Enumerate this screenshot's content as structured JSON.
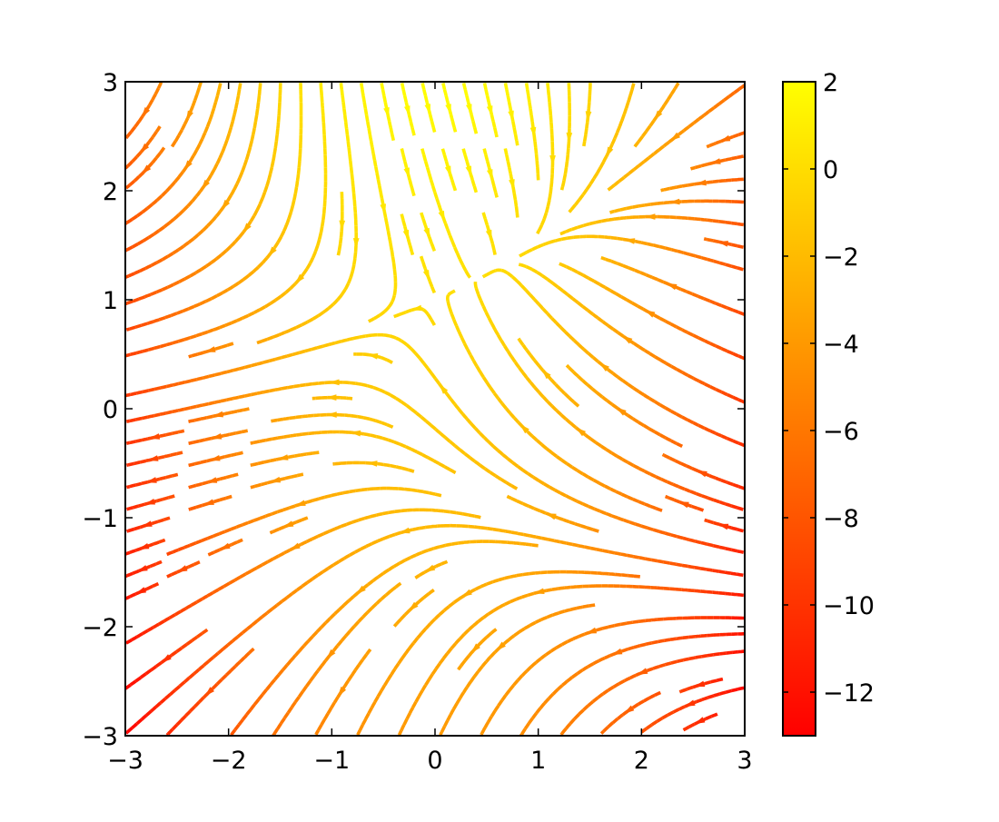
{
  "chart_data": {
    "type": "streamplot",
    "vector_field": {
      "U": "-1 - x^2 + y",
      "V": "1 + x - y^2"
    },
    "color_by": "U",
    "colormap": "autumn",
    "colormap_colors": {
      "low": "#ff0000",
      "high": "#ffff00"
    },
    "xlim": [
      -3,
      3
    ],
    "ylim": [
      -3,
      3
    ],
    "xticks": [
      "−3",
      "−2",
      "−1",
      "0",
      "1",
      "2",
      "3"
    ],
    "yticks": [
      "−3",
      "−2",
      "−1",
      "0",
      "1",
      "2",
      "3"
    ],
    "xtick_values": [
      -3,
      -2,
      -1,
      0,
      1,
      2,
      3
    ],
    "ytick_values": [
      -3,
      -2,
      -1,
      0,
      1,
      2,
      3
    ],
    "colorbar": {
      "range": [
        -13,
        2
      ],
      "tick_values": [
        2,
        0,
        -2,
        -4,
        -6,
        -8,
        -10,
        -12
      ],
      "tick_labels": [
        "2",
        "0",
        "−2",
        "−4",
        "−6",
        "−8",
        "−10",
        "−12"
      ]
    },
    "grid": false,
    "title": "",
    "xlabel": "",
    "ylabel": ""
  }
}
